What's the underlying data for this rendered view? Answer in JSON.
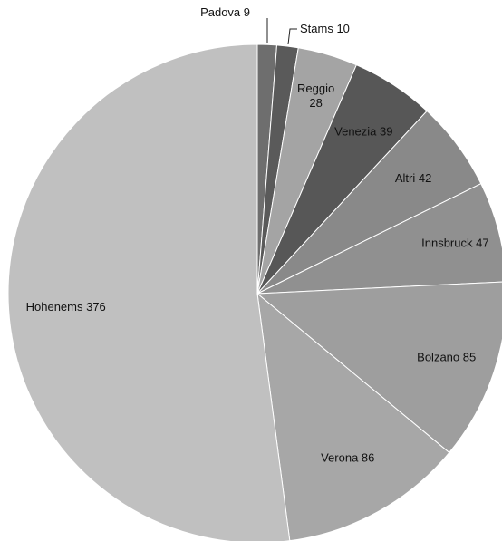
{
  "chart_data": {
    "type": "pie",
    "title": "",
    "slices": [
      {
        "label": "Padova 9",
        "name": "Padova",
        "value": 9,
        "color": "#6e6e6e"
      },
      {
        "label": "Stams 10",
        "name": "Stams",
        "value": 10,
        "color": "#5a5a5a"
      },
      {
        "label": "Reggio 28",
        "name": "Reggio",
        "value": 28,
        "color": "#a4a4a4"
      },
      {
        "label": "Venezia 39",
        "name": "Venezia",
        "value": 39,
        "color": "#575757"
      },
      {
        "label": "Altri 42",
        "name": "Altri",
        "value": 42,
        "color": "#898989"
      },
      {
        "label": "Innsbruck 47",
        "name": "Innsbruck",
        "value": 47,
        "color": "#909090"
      },
      {
        "label": "Bolzano 85",
        "name": "Bolzano",
        "value": 85,
        "color": "#9e9e9e"
      },
      {
        "label": "Verona 86",
        "name": "Verona",
        "value": 86,
        "color": "#a7a7a7"
      },
      {
        "label": "Hohenems 376",
        "name": "Hohenems",
        "value": 376,
        "color": "#c0c0c0"
      }
    ],
    "legend": "none",
    "data_labels": "category and value"
  }
}
